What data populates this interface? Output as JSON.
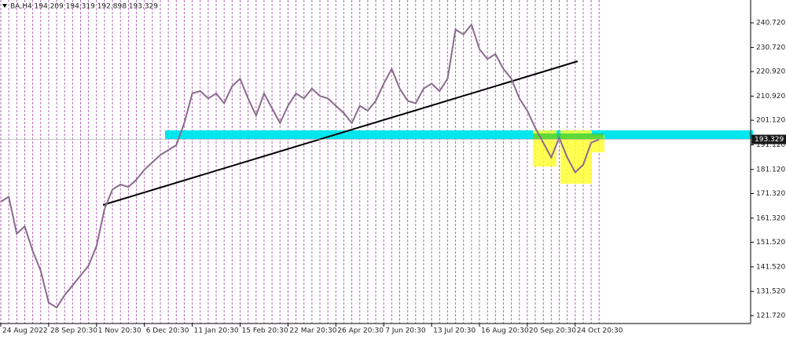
{
  "chart_data": {
    "type": "line",
    "title": "BA,H4  194.209 194.319 192.898 193.329",
    "categories": [
      "24 Aug 2022",
      null,
      null,
      null,
      null,
      null,
      "28 Sep 20:30",
      null,
      null,
      null,
      null,
      null,
      "1 Nov 20:30",
      null,
      null,
      null,
      null,
      null,
      "6 Dec 20:30",
      null,
      null,
      null,
      null,
      null,
      "11 Jan 20:30",
      null,
      null,
      null,
      null,
      null,
      "15 Feb 20:30",
      null,
      null,
      null,
      null,
      null,
      "22 Mar 20:30",
      null,
      null,
      null,
      null,
      null,
      "26 Apr 20:30",
      null,
      null,
      null,
      null,
      null,
      "7 Jun 20:30",
      null,
      null,
      null,
      null,
      null,
      "13 Jul 20:30",
      null,
      null,
      null,
      null,
      null,
      "16 Aug 20:30",
      null,
      null,
      null,
      null,
      null,
      "20 Sep 20:30",
      null,
      null,
      null,
      null,
      null,
      "24 Oct 20:30",
      null,
      null,
      null
    ],
    "series": [
      {
        "name": "BA,H4",
        "color": "#8a6a8e",
        "values": [
          168,
          170,
          155,
          158,
          148,
          140,
          127,
          125,
          130,
          134,
          138,
          142,
          150,
          165,
          173,
          175,
          174,
          177,
          181,
          184,
          187,
          189,
          191,
          200,
          212,
          213,
          210,
          212,
          208,
          215,
          218,
          210,
          203,
          212,
          206,
          200,
          207,
          212,
          210,
          214,
          211,
          210,
          207,
          204,
          200,
          207,
          205,
          209,
          216,
          222,
          214,
          209,
          208,
          214,
          216,
          213,
          218,
          238,
          236,
          240,
          230,
          226,
          228,
          222,
          218,
          210,
          205,
          198,
          192,
          186,
          194,
          186,
          180,
          183,
          192,
          193.329
        ]
      }
    ],
    "last_price": 193.329,
    "ylim": [
      118.5,
      250.0
    ],
    "yticks": [
      {
        "value": 240.72,
        "label": "240.720"
      },
      {
        "value": 230.72,
        "label": "230.720"
      },
      {
        "value": 220.92,
        "label": "220.920"
      },
      {
        "value": 210.92,
        "label": "210.920"
      },
      {
        "value": 201.12,
        "label": "201.120"
      },
      {
        "value": 191.12,
        "label": "191.120"
      },
      {
        "value": 181.12,
        "label": "181.120"
      },
      {
        "value": 171.32,
        "label": "171.320"
      },
      {
        "value": 161.32,
        "label": "161.320"
      },
      {
        "value": 151.52,
        "label": "151.520"
      },
      {
        "value": 141.52,
        "label": "141.520"
      },
      {
        "value": 131.52,
        "label": "131.520"
      },
      {
        "value": 121.72,
        "label": "121.720"
      }
    ]
  }
}
